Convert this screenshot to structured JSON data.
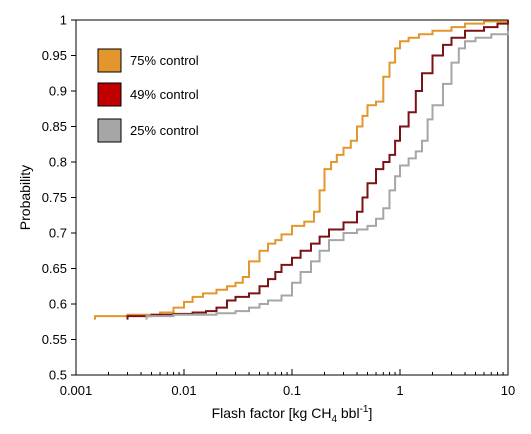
{
  "chart_data": {
    "type": "line",
    "title": "",
    "xlabel": "Flash factor [kg CH",
    "xlabel_sub": "4",
    "xlabel_mid": " bbl",
    "xlabel_sup": "-1",
    "xlabel_end": "]",
    "ylabel": "Probability",
    "x_scale": "log",
    "xlim": [
      0.001,
      10
    ],
    "ylim": [
      0.5,
      1.0
    ],
    "x_ticks": [
      0.001,
      0.01,
      0.1,
      1,
      10
    ],
    "x_tick_labels": [
      "0.001",
      "0.01",
      "0.1",
      "1",
      "10"
    ],
    "y_ticks": [
      0.5,
      0.55,
      0.6,
      0.65,
      0.7,
      0.75,
      0.8,
      0.85,
      0.9,
      0.95,
      1.0
    ],
    "y_tick_labels": [
      "0.5",
      "0.55",
      "0.6",
      "0.65",
      "0.7",
      "0.75",
      "0.8",
      "0.85",
      "0.9",
      "0.95",
      "1"
    ],
    "grid": false,
    "legend_position": "top-left",
    "series": [
      {
        "name": "75% control",
        "color": "#E3962B",
        "points": [
          [
            0.0015,
            0.578
          ],
          [
            0.0015,
            0.583
          ],
          [
            0.003,
            0.585
          ],
          [
            0.006,
            0.588
          ],
          [
            0.008,
            0.595
          ],
          [
            0.01,
            0.603
          ],
          [
            0.012,
            0.61
          ],
          [
            0.015,
            0.615
          ],
          [
            0.02,
            0.62
          ],
          [
            0.025,
            0.625
          ],
          [
            0.03,
            0.63
          ],
          [
            0.035,
            0.638
          ],
          [
            0.04,
            0.66
          ],
          [
            0.05,
            0.675
          ],
          [
            0.06,
            0.685
          ],
          [
            0.07,
            0.69
          ],
          [
            0.08,
            0.698
          ],
          [
            0.1,
            0.71
          ],
          [
            0.13,
            0.716
          ],
          [
            0.16,
            0.73
          ],
          [
            0.18,
            0.76
          ],
          [
            0.2,
            0.79
          ],
          [
            0.23,
            0.8
          ],
          [
            0.26,
            0.81
          ],
          [
            0.3,
            0.82
          ],
          [
            0.35,
            0.83
          ],
          [
            0.4,
            0.85
          ],
          [
            0.45,
            0.865
          ],
          [
            0.5,
            0.88
          ],
          [
            0.6,
            0.885
          ],
          [
            0.7,
            0.92
          ],
          [
            0.8,
            0.94
          ],
          [
            0.9,
            0.96
          ],
          [
            1.0,
            0.97
          ],
          [
            1.2,
            0.975
          ],
          [
            1.5,
            0.98
          ],
          [
            2.0,
            0.985
          ],
          [
            3.0,
            0.99
          ],
          [
            4.0,
            0.995
          ],
          [
            6.0,
            0.998
          ],
          [
            10.0,
            1.0
          ]
        ]
      },
      {
        "name": "49% control",
        "color": "#C00000",
        "line_color": "#7B1216",
        "points": [
          [
            0.003,
            0.578
          ],
          [
            0.003,
            0.583
          ],
          [
            0.005,
            0.585
          ],
          [
            0.008,
            0.586
          ],
          [
            0.012,
            0.588
          ],
          [
            0.016,
            0.59
          ],
          [
            0.02,
            0.595
          ],
          [
            0.025,
            0.605
          ],
          [
            0.03,
            0.61
          ],
          [
            0.04,
            0.615
          ],
          [
            0.05,
            0.625
          ],
          [
            0.06,
            0.635
          ],
          [
            0.07,
            0.645
          ],
          [
            0.08,
            0.655
          ],
          [
            0.1,
            0.665
          ],
          [
            0.12,
            0.675
          ],
          [
            0.15,
            0.685
          ],
          [
            0.18,
            0.695
          ],
          [
            0.22,
            0.705
          ],
          [
            0.3,
            0.715
          ],
          [
            0.4,
            0.73
          ],
          [
            0.45,
            0.75
          ],
          [
            0.5,
            0.77
          ],
          [
            0.6,
            0.79
          ],
          [
            0.7,
            0.8
          ],
          [
            0.8,
            0.81
          ],
          [
            0.9,
            0.83
          ],
          [
            1.0,
            0.85
          ],
          [
            1.2,
            0.87
          ],
          [
            1.4,
            0.9
          ],
          [
            1.6,
            0.925
          ],
          [
            2.0,
            0.95
          ],
          [
            2.5,
            0.965
          ],
          [
            3.0,
            0.975
          ],
          [
            4.0,
            0.985
          ],
          [
            6.0,
            0.99
          ],
          [
            8.0,
            0.995
          ],
          [
            10.0,
            1.0
          ]
        ]
      },
      {
        "name": "25% control",
        "color": "#A6A6A6",
        "points": [
          [
            0.0045,
            0.578
          ],
          [
            0.0045,
            0.583
          ],
          [
            0.008,
            0.585
          ],
          [
            0.015,
            0.585
          ],
          [
            0.02,
            0.587
          ],
          [
            0.03,
            0.59
          ],
          [
            0.04,
            0.595
          ],
          [
            0.05,
            0.6
          ],
          [
            0.06,
            0.605
          ],
          [
            0.08,
            0.612
          ],
          [
            0.1,
            0.63
          ],
          [
            0.12,
            0.645
          ],
          [
            0.15,
            0.66
          ],
          [
            0.18,
            0.675
          ],
          [
            0.22,
            0.69
          ],
          [
            0.3,
            0.7
          ],
          [
            0.4,
            0.705
          ],
          [
            0.5,
            0.71
          ],
          [
            0.6,
            0.72
          ],
          [
            0.7,
            0.735
          ],
          [
            0.8,
            0.76
          ],
          [
            0.9,
            0.78
          ],
          [
            1.0,
            0.795
          ],
          [
            1.2,
            0.805
          ],
          [
            1.4,
            0.815
          ],
          [
            1.6,
            0.83
          ],
          [
            1.8,
            0.86
          ],
          [
            2.0,
            0.88
          ],
          [
            2.5,
            0.91
          ],
          [
            3.0,
            0.94
          ],
          [
            3.5,
            0.96
          ],
          [
            4.0,
            0.97
          ],
          [
            5.0,
            0.975
          ],
          [
            7.0,
            0.98
          ],
          [
            10.0,
            0.985
          ]
        ]
      }
    ]
  }
}
